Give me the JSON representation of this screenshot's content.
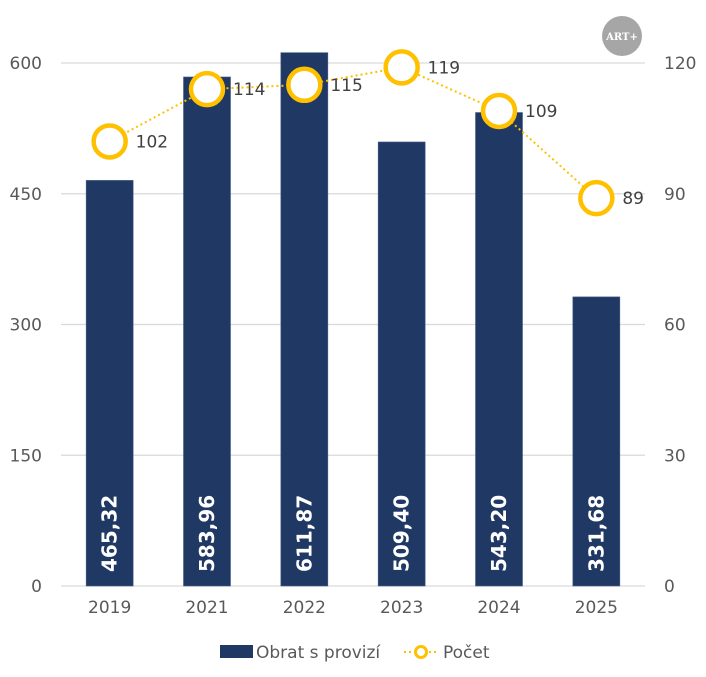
{
  "logo": {
    "text": "ART+",
    "color": "#a6a6a6"
  },
  "colors": {
    "bar": "#203864",
    "line": "#ffc000",
    "grid": "#d9d9d9",
    "axis_text": "#595959",
    "bar_label": "#ffffff"
  },
  "chart_data": {
    "type": "bar",
    "categories": [
      "2019",
      "2021",
      "2022",
      "2023",
      "2024",
      "2025"
    ],
    "series": [
      {
        "name": "Obrat s provizí",
        "type": "bar",
        "axis": "left",
        "values": [
          465.32,
          583.96,
          611.87,
          509.4,
          543.2,
          331.68
        ],
        "labels": [
          "465,32",
          "583,96",
          "611,87",
          "509,40",
          "543,20",
          "331,68"
        ]
      },
      {
        "name": "Počet",
        "type": "line",
        "axis": "right",
        "style": "dotted line with hollow circle markers",
        "values": [
          102,
          114,
          115,
          119,
          109,
          89
        ],
        "labels": [
          "102",
          "114",
          "115",
          "119",
          "109",
          "89"
        ]
      }
    ],
    "y_left": {
      "ylim": [
        0,
        600
      ],
      "ticks": [
        0,
        150,
        300,
        450,
        600
      ],
      "tick_labels": [
        "0",
        "150",
        "300",
        "450",
        "600"
      ]
    },
    "y_right": {
      "ylim": [
        0,
        120
      ],
      "ticks": [
        0,
        30,
        60,
        90,
        120
      ],
      "tick_labels": [
        "0",
        "30",
        "60",
        "90",
        "120"
      ]
    },
    "grid": true,
    "legend": {
      "position": "bottom",
      "entries": [
        "Obrat s provizí",
        "Počet"
      ]
    },
    "title": "",
    "xlabel": "",
    "ylabel": ""
  }
}
